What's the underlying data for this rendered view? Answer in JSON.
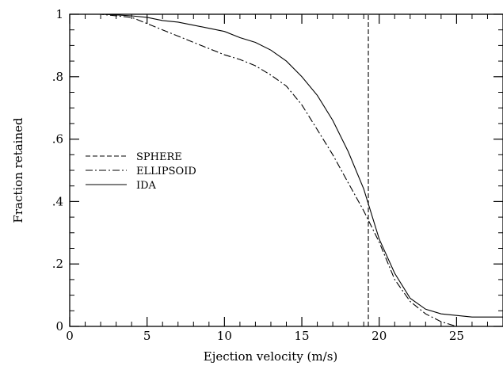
{
  "chart_data": {
    "type": "line",
    "xlabel": "Ejection velocity (m/s)",
    "ylabel": "Fraction retained",
    "xlim": [
      0,
      28
    ],
    "ylim": [
      0,
      1
    ],
    "x_ticks": [
      {
        "value": 0,
        "label": "0"
      },
      {
        "value": 5,
        "label": "5"
      },
      {
        "value": 10,
        "label": "10"
      },
      {
        "value": 15,
        "label": "15"
      },
      {
        "value": 20,
        "label": "20"
      },
      {
        "value": 25,
        "label": "25"
      }
    ],
    "y_ticks": [
      {
        "value": 0,
        "label": "0"
      },
      {
        "value": 0.2,
        "label": ".2"
      },
      {
        "value": 0.4,
        "label": ".4"
      },
      {
        "value": 0.6,
        "label": ".6"
      },
      {
        "value": 0.8,
        "label": ".8"
      },
      {
        "value": 1,
        "label": "1"
      }
    ],
    "x_minor_step": 1,
    "y_minor_step": 0.05,
    "grid": false,
    "legend_position": "center-left",
    "series": [
      {
        "name": "SPHERE",
        "style": "dashed",
        "points": [
          [
            19.3,
            0
          ],
          [
            19.3,
            1
          ]
        ]
      },
      {
        "name": "ELLIPSOID",
        "style": "dashdot",
        "points": [
          [
            0,
            1.0
          ],
          [
            2,
            1.0
          ],
          [
            3,
            0.995
          ],
          [
            4,
            0.99
          ],
          [
            5,
            0.97
          ],
          [
            6,
            0.95
          ],
          [
            7,
            0.93
          ],
          [
            8,
            0.91
          ],
          [
            9,
            0.89
          ],
          [
            10,
            0.87
          ],
          [
            11,
            0.855
          ],
          [
            12,
            0.835
          ],
          [
            13,
            0.805
          ],
          [
            14,
            0.77
          ],
          [
            15,
            0.71
          ],
          [
            16,
            0.63
          ],
          [
            17,
            0.55
          ],
          [
            18,
            0.46
          ],
          [
            19,
            0.37
          ],
          [
            20,
            0.27
          ],
          [
            21,
            0.15
          ],
          [
            22,
            0.08
          ],
          [
            23,
            0.04
          ],
          [
            24,
            0.015
          ],
          [
            25,
            0.0
          ]
        ]
      },
      {
        "name": "IDA",
        "style": "solid",
        "points": [
          [
            0,
            1.0
          ],
          [
            2,
            1.0
          ],
          [
            3,
            0.998
          ],
          [
            4,
            0.995
          ],
          [
            5,
            0.99
          ],
          [
            6,
            0.98
          ],
          [
            7,
            0.975
          ],
          [
            8,
            0.965
          ],
          [
            9,
            0.955
          ],
          [
            10,
            0.945
          ],
          [
            11,
            0.925
          ],
          [
            12,
            0.91
          ],
          [
            13,
            0.885
          ],
          [
            14,
            0.85
          ],
          [
            15,
            0.8
          ],
          [
            16,
            0.74
          ],
          [
            17,
            0.66
          ],
          [
            18,
            0.56
          ],
          [
            19,
            0.44
          ],
          [
            20,
            0.28
          ],
          [
            21,
            0.17
          ],
          [
            22,
            0.09
          ],
          [
            23,
            0.055
          ],
          [
            24,
            0.04
          ],
          [
            25,
            0.035
          ],
          [
            26,
            0.03
          ],
          [
            27,
            0.03
          ],
          [
            28,
            0.03
          ]
        ]
      }
    ]
  }
}
